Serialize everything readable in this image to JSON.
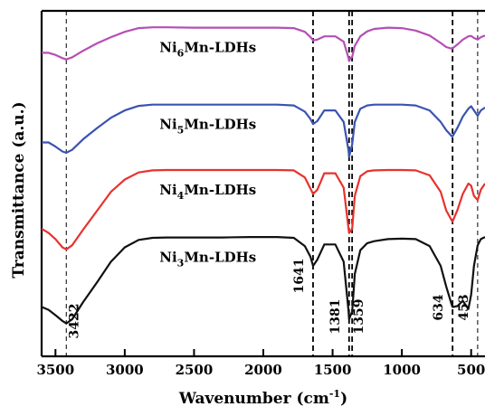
{
  "chart_data": {
    "type": "line",
    "xlabel": "Wavenumber (cm",
    "xlabel_sup": "-1",
    "xlabel_close": ")",
    "ylabel": "Transmittance (a.u.)",
    "xlim": [
      3600,
      400
    ],
    "x_reversed": true,
    "xticks": [
      3500,
      3000,
      2500,
      2000,
      1500,
      1000,
      500
    ],
    "yticks": [],
    "grid": false,
    "legend": "none",
    "peaks": [
      {
        "x": 3422,
        "label": "3422",
        "line": "thin"
      },
      {
        "x": 1641,
        "label": "1641",
        "line": "thick"
      },
      {
        "x": 1381,
        "label": "1381",
        "line": "thick"
      },
      {
        "x": 1359,
        "label": "1359",
        "line": "thick"
      },
      {
        "x": 634,
        "label": "634",
        "line": "thick"
      },
      {
        "x": 453,
        "label": "453",
        "line": "thin"
      }
    ],
    "series": [
      {
        "name": "Ni6Mn-LDHs",
        "label": {
          "prefix": "Ni",
          "sub": "6",
          "suffix": "Mn-LDHs"
        },
        "color": "#b54fb5",
        "x": [
          3600,
          3550,
          3500,
          3450,
          3422,
          3380,
          3300,
          3200,
          3100,
          3000,
          2900,
          2800,
          2700,
          2500,
          2300,
          2100,
          1900,
          1780,
          1700,
          1660,
          1641,
          1610,
          1560,
          1480,
          1420,
          1385,
          1381,
          1370,
          1359,
          1340,
          1300,
          1250,
          1200,
          1100,
          1000,
          900,
          800,
          720,
          680,
          640,
          634,
          600,
          560,
          520,
          500,
          480,
          453,
          430,
          400
        ],
        "y": [
          0.958,
          0.958,
          0.953,
          0.945,
          0.942,
          0.947,
          0.963,
          0.981,
          0.996,
          1.009,
          1.018,
          1.02,
          1.02,
          1.019,
          1.019,
          1.019,
          1.019,
          1.018,
          1.009,
          0.996,
          0.988,
          0.99,
          0.998,
          0.998,
          0.985,
          0.945,
          0.938,
          0.945,
          0.948,
          0.975,
          0.998,
          1.01,
          1.016,
          1.019,
          1.018,
          1.012,
          1.0,
          0.982,
          0.972,
          0.968,
          0.969,
          0.978,
          0.99,
          0.998,
          0.999,
          0.994,
          0.99,
          0.996,
          1.0
        ]
      },
      {
        "name": "Ni5Mn-LDHs",
        "label": {
          "prefix": "Ni",
          "sub": "5",
          "suffix": "Mn-LDHs"
        },
        "color": "#3b53b0",
        "x": [
          3600,
          3550,
          3500,
          3450,
          3422,
          3380,
          3300,
          3200,
          3100,
          3000,
          2900,
          2800,
          2700,
          2500,
          2300,
          2100,
          1900,
          1780,
          1700,
          1660,
          1641,
          1610,
          1560,
          1480,
          1420,
          1385,
          1381,
          1370,
          1359,
          1340,
          1300,
          1250,
          1200,
          1100,
          1000,
          900,
          800,
          720,
          680,
          640,
          634,
          600,
          560,
          520,
          500,
          480,
          453,
          430,
          400
        ],
        "y": [
          0.74,
          0.74,
          0.73,
          0.718,
          0.715,
          0.722,
          0.748,
          0.775,
          0.8,
          0.818,
          0.829,
          0.832,
          0.832,
          0.832,
          0.832,
          0.832,
          0.832,
          0.83,
          0.815,
          0.797,
          0.785,
          0.792,
          0.818,
          0.818,
          0.79,
          0.72,
          0.705,
          0.72,
          0.735,
          0.79,
          0.822,
          0.83,
          0.832,
          0.832,
          0.832,
          0.83,
          0.818,
          0.79,
          0.77,
          0.755,
          0.755,
          0.775,
          0.803,
          0.822,
          0.828,
          0.818,
          0.805,
          0.818,
          0.825
        ]
      },
      {
        "name": "Ni4Mn-LDHs",
        "label": {
          "prefix": "Ni",
          "sub": "4",
          "suffix": "Mn-LDHs"
        },
        "color": "#e8322d",
        "x": [
          3600,
          3550,
          3500,
          3450,
          3422,
          3380,
          3300,
          3200,
          3100,
          3000,
          2900,
          2800,
          2700,
          2500,
          2300,
          2100,
          1900,
          1780,
          1700,
          1660,
          1641,
          1610,
          1560,
          1480,
          1420,
          1385,
          1381,
          1370,
          1359,
          1340,
          1300,
          1250,
          1200,
          1100,
          1000,
          900,
          800,
          720,
          680,
          640,
          634,
          600,
          560,
          520,
          500,
          480,
          453,
          430,
          400
        ],
        "y": [
          0.53,
          0.52,
          0.505,
          0.485,
          0.48,
          0.49,
          0.528,
          0.574,
          0.62,
          0.65,
          0.667,
          0.672,
          0.673,
          0.673,
          0.673,
          0.673,
          0.673,
          0.672,
          0.655,
          0.628,
          0.615,
          0.625,
          0.665,
          0.665,
          0.63,
          0.53,
          0.52,
          0.525,
          0.53,
          0.61,
          0.658,
          0.67,
          0.672,
          0.673,
          0.673,
          0.672,
          0.66,
          0.62,
          0.575,
          0.55,
          0.548,
          0.575,
          0.615,
          0.64,
          0.635,
          0.61,
          0.6,
          0.625,
          0.64
        ]
      },
      {
        "name": "Ni3Mn-LDHs",
        "label": {
          "prefix": "Ni",
          "sub": "3",
          "suffix": "Mn-LDHs"
        },
        "color": "#111111",
        "x": [
          3600,
          3550,
          3500,
          3450,
          3422,
          3380,
          3300,
          3200,
          3100,
          3000,
          2900,
          2800,
          2700,
          2500,
          2300,
          2100,
          1900,
          1780,
          1700,
          1660,
          1641,
          1610,
          1560,
          1480,
          1420,
          1385,
          1381,
          1370,
          1359,
          1340,
          1300,
          1250,
          1200,
          1100,
          1000,
          900,
          800,
          720,
          680,
          640,
          634,
          600,
          560,
          520,
          500,
          480,
          453,
          430,
          400
        ],
        "y": [
          0.34,
          0.333,
          0.32,
          0.306,
          0.3,
          0.31,
          0.352,
          0.4,
          0.45,
          0.485,
          0.503,
          0.508,
          0.509,
          0.509,
          0.509,
          0.51,
          0.51,
          0.508,
          0.488,
          0.462,
          0.44,
          0.455,
          0.492,
          0.492,
          0.45,
          0.33,
          0.31,
          0.32,
          0.328,
          0.42,
          0.478,
          0.495,
          0.5,
          0.505,
          0.506,
          0.505,
          0.488,
          0.44,
          0.39,
          0.345,
          0.34,
          0.342,
          0.355,
          0.335,
          0.37,
          0.44,
          0.49,
          0.505,
          0.51
        ]
      }
    ]
  }
}
